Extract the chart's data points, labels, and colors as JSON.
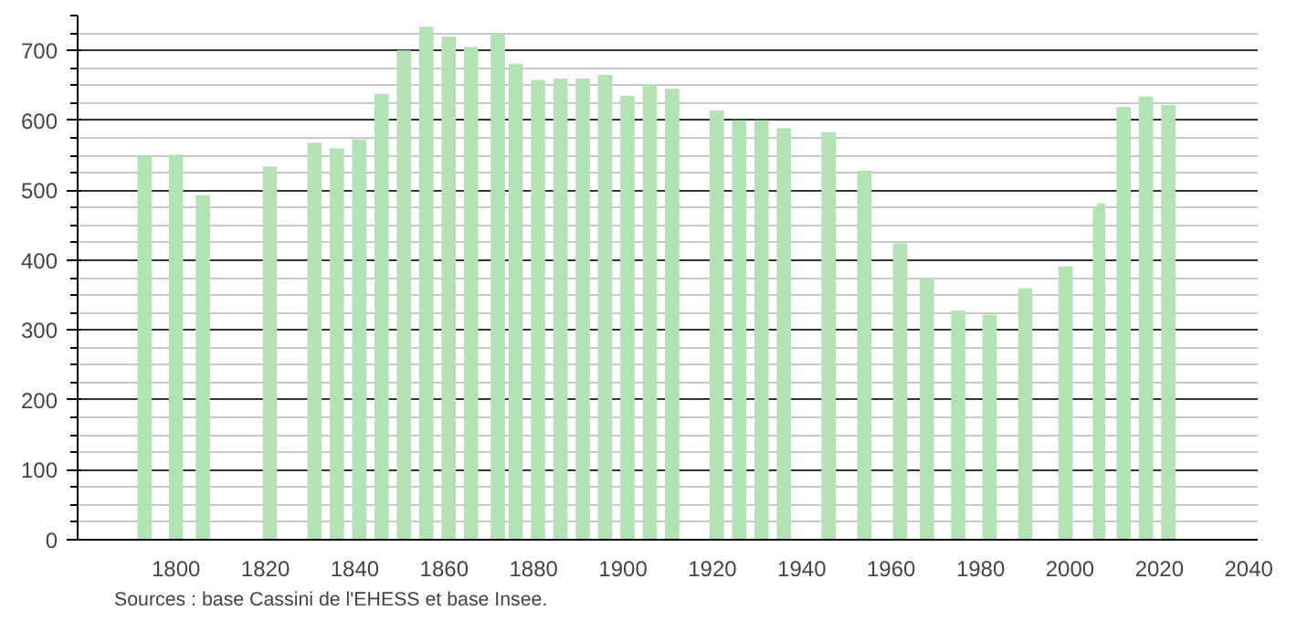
{
  "chart_data": {
    "type": "bar",
    "x": [
      1793,
      1800,
      1806,
      1821,
      1831,
      1836,
      1841,
      1846,
      1851,
      1856,
      1861,
      1866,
      1872,
      1876,
      1881,
      1886,
      1891,
      1896,
      1901,
      1906,
      1911,
      1921,
      1926,
      1931,
      1936,
      1946,
      1954,
      1962,
      1968,
      1975,
      1982,
      1990,
      1999,
      2006,
      2007,
      2012,
      2017,
      2022
    ],
    "values": [
      549,
      551,
      493,
      534,
      568,
      560,
      573,
      638,
      700,
      734,
      720,
      705,
      724,
      681,
      658,
      660,
      660,
      665,
      635,
      652,
      645,
      614,
      600,
      600,
      589,
      583,
      528,
      424,
      374,
      328,
      322,
      360,
      391,
      474,
      481,
      619,
      634,
      622
    ],
    "color": "#b3e3b5",
    "xlim": [
      1778,
      2042
    ],
    "xticks": [
      1800,
      1820,
      1840,
      1860,
      1880,
      1900,
      1920,
      1940,
      1960,
      1980,
      2000,
      2020,
      2040
    ],
    "ylim": [
      0,
      750
    ],
    "yticks": [
      0,
      100,
      200,
      300,
      400,
      500,
      600,
      700
    ],
    "grid": "y",
    "annotations": [
      "Sources : base Cassini de l'EHESS et base Insee."
    ]
  }
}
